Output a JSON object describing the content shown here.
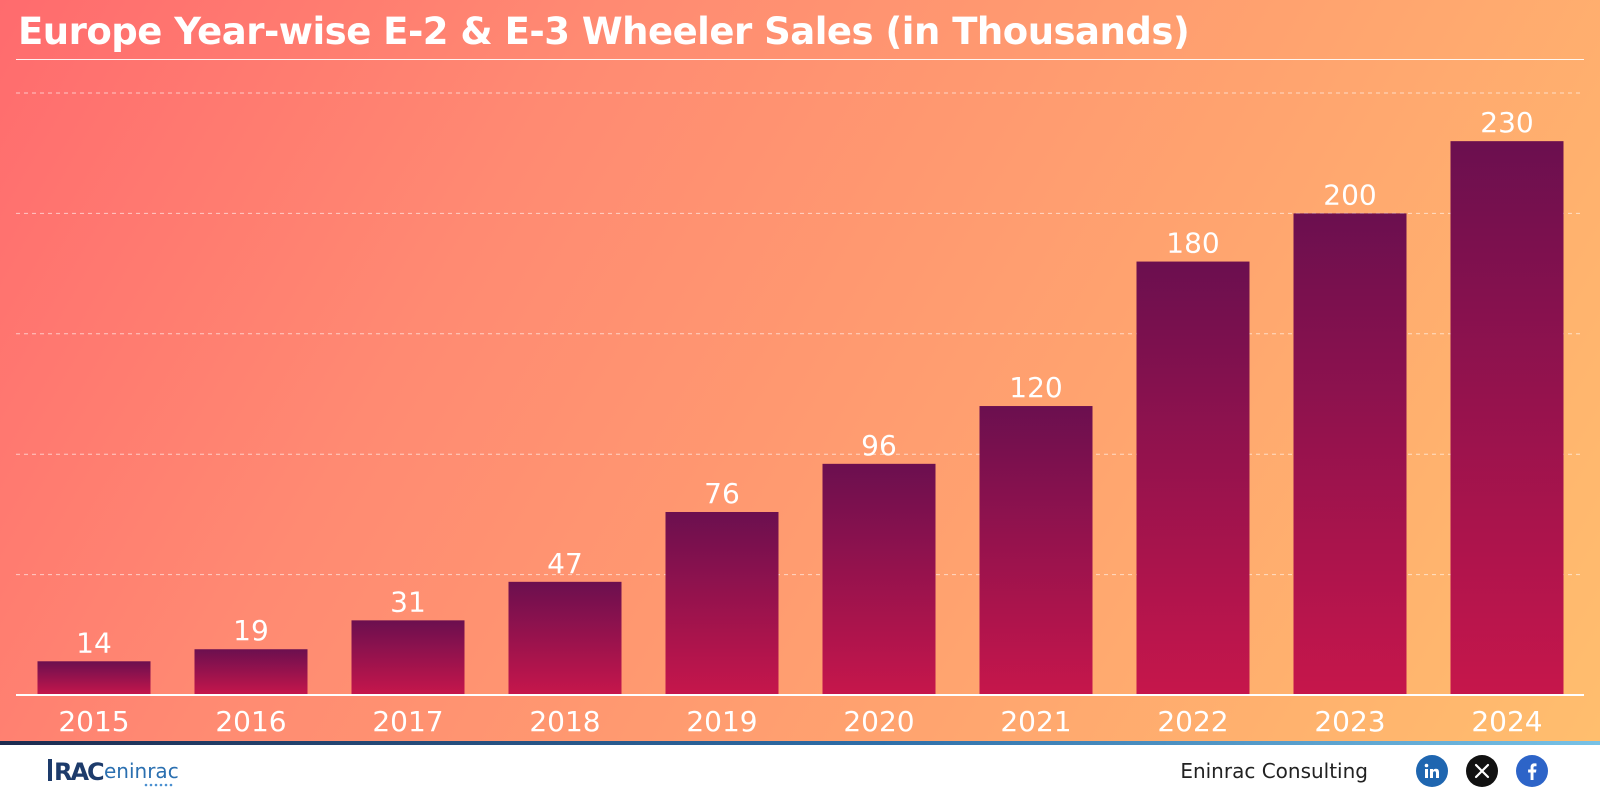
{
  "title": "Europe Year-wise E-2 & E-3 Wheeler Sales (in Thousands)",
  "chart_data": {
    "type": "bar",
    "title": "Europe Year-wise E-2 & E-3 Wheeler Sales (in Thousands)",
    "xlabel": "",
    "ylabel": "",
    "categories": [
      "2015",
      "2016",
      "2017",
      "2018",
      "2019",
      "2020",
      "2021",
      "2022",
      "2023",
      "2024"
    ],
    "values": [
      14,
      19,
      31,
      47,
      76,
      96,
      120,
      180,
      200,
      230
    ],
    "ylim": [
      0,
      250
    ],
    "grid": true,
    "bar_gradient": [
      "#6b0f4f",
      "#c6164b"
    ]
  },
  "footer": {
    "logo_text": "RAC eninrac",
    "brand": "Eninrac Consulting",
    "social_icons": [
      "linkedin-icon",
      "x-icon",
      "facebook-icon"
    ],
    "colors": {
      "linkedin": "#1f66b0",
      "x": "#111111",
      "facebook": "#2d64c8"
    }
  }
}
